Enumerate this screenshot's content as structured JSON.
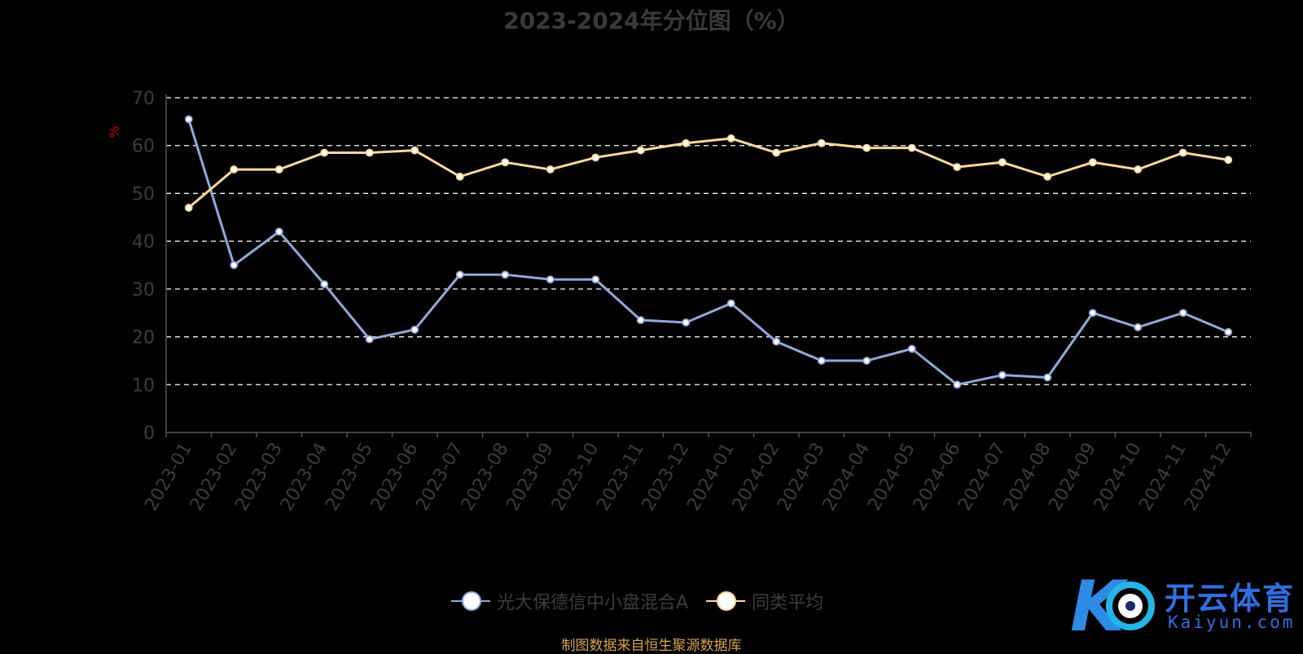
{
  "title": "2023-2024年分位图（%）",
  "source": "制图数据来自恒生聚源数据库",
  "logo": {
    "name": "开云体育",
    "domain": "Kaiyun.com"
  },
  "colors": {
    "series_a": "#8eaadb",
    "series_b": "#ffd99a",
    "axis": "#555555",
    "grid": "#ffffff",
    "ylabel": "#c00000"
  },
  "chart_data": {
    "type": "line",
    "title": "2023-2024年分位图（%）",
    "xlabel": "",
    "ylabel": "%",
    "ylim": [
      0,
      70
    ],
    "yticks": [
      0,
      10,
      20,
      30,
      40,
      50,
      60,
      70
    ],
    "grid": true,
    "legend": "bottom",
    "categories": [
      "2023-01",
      "2023-02",
      "2023-03",
      "2023-04",
      "2023-05",
      "2023-06",
      "2023-07",
      "2023-08",
      "2023-09",
      "2023-10",
      "2023-11",
      "2023-12",
      "2024-01",
      "2024-02",
      "2024-03",
      "2024-04",
      "2024-05",
      "2024-06",
      "2024-07",
      "2024-08",
      "2024-09",
      "2024-10",
      "2024-11",
      "2024-12"
    ],
    "series": [
      {
        "name": "光大保德信中小盘混合A",
        "color": "#8eaadb",
        "values": [
          65.5,
          35,
          42,
          31,
          19.5,
          21.5,
          33,
          33,
          32,
          32,
          23.5,
          23,
          27,
          19,
          15,
          15,
          17.5,
          10,
          12,
          11.5,
          25,
          22,
          25,
          21
        ]
      },
      {
        "name": "同类平均",
        "color": "#ffd99a",
        "values": [
          47,
          55,
          55,
          58.5,
          58.5,
          59,
          53.5,
          56.5,
          55,
          57.5,
          59,
          60.5,
          61.5,
          58.5,
          60.5,
          59.5,
          59.5,
          55.5,
          56.5,
          53.5,
          56.5,
          55,
          58.5,
          57
        ]
      }
    ]
  }
}
